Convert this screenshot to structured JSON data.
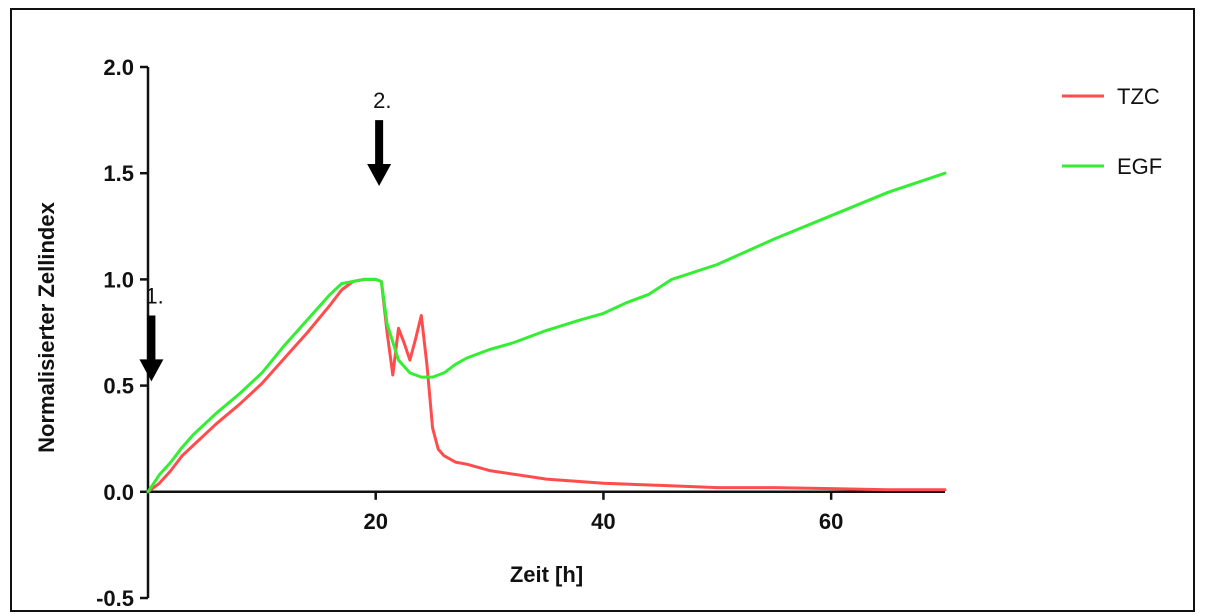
{
  "chart_data": {
    "type": "line",
    "xlabel": "Zeit [h]",
    "ylabel": "Normalisierter Zellindex",
    "xlim": [
      0,
      70
    ],
    "ylim": [
      -0.5,
      2.0
    ],
    "x_ticks": [
      20,
      40,
      60
    ],
    "x_tick_labels": [
      "20",
      "40",
      "60"
    ],
    "y_ticks": [
      -0.5,
      0.0,
      0.5,
      1.0,
      1.5,
      2.0
    ],
    "y_tick_labels": [
      "-0.5",
      "0.0",
      "0.5",
      "1.0",
      "1.5",
      "2.0"
    ],
    "grid": false,
    "legend_position": "top-right",
    "series": [
      {
        "name": "TZC",
        "color": "#ff4d4d",
        "x": [
          0,
          1,
          2,
          3,
          4,
          6,
          8,
          10,
          12,
          14,
          16,
          17,
          18,
          19,
          20,
          20.5,
          21,
          21.5,
          22,
          22.5,
          23,
          23.5,
          24,
          24.5,
          25,
          25.5,
          26,
          27,
          28,
          30,
          35,
          40,
          45,
          50,
          55,
          60,
          65,
          70
        ],
        "y": [
          0.0,
          0.04,
          0.1,
          0.17,
          0.22,
          0.32,
          0.41,
          0.51,
          0.63,
          0.75,
          0.88,
          0.95,
          0.99,
          1.0,
          1.0,
          0.99,
          0.75,
          0.55,
          0.77,
          0.7,
          0.62,
          0.72,
          0.83,
          0.6,
          0.3,
          0.2,
          0.17,
          0.14,
          0.13,
          0.1,
          0.06,
          0.04,
          0.03,
          0.02,
          0.02,
          0.015,
          0.01,
          0.01
        ]
      },
      {
        "name": "EGF",
        "color": "#33ee33",
        "x": [
          0,
          1,
          2,
          3,
          4,
          6,
          8,
          10,
          12,
          14,
          16,
          17,
          18,
          19,
          20,
          20.5,
          21,
          22,
          23,
          24,
          25,
          26,
          27,
          28,
          30,
          32,
          35,
          38,
          40,
          42,
          44,
          46,
          50,
          55,
          60,
          65,
          70
        ],
        "y": [
          0.0,
          0.08,
          0.14,
          0.21,
          0.27,
          0.37,
          0.46,
          0.56,
          0.69,
          0.81,
          0.93,
          0.98,
          0.99,
          1.0,
          1.0,
          0.99,
          0.79,
          0.62,
          0.56,
          0.54,
          0.54,
          0.56,
          0.6,
          0.63,
          0.67,
          0.7,
          0.76,
          0.81,
          0.84,
          0.89,
          0.93,
          1.0,
          1.07,
          1.19,
          1.3,
          1.41,
          1.5
        ]
      }
    ],
    "annotations": [
      {
        "label": "1.",
        "x": 0.3,
        "arrow_tip_y": 0.52,
        "arrow_tail_y": 0.83
      },
      {
        "label": "2.",
        "x": 20.3,
        "arrow_tip_y": 1.44,
        "arrow_tail_y": 1.75
      }
    ]
  }
}
